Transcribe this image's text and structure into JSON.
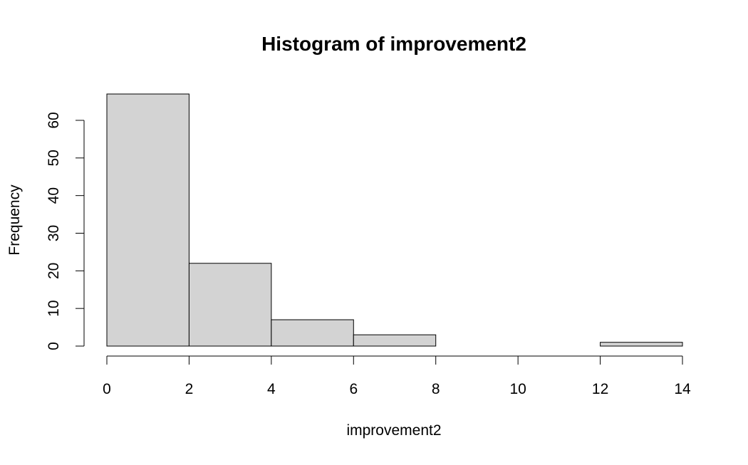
{
  "chart_data": {
    "type": "bar",
    "title": "Histogram of improvement2",
    "xlabel": "improvement2",
    "ylabel": "Frequency",
    "bins": [
      {
        "from": 0,
        "to": 2,
        "count": 67
      },
      {
        "from": 2,
        "to": 4,
        "count": 22
      },
      {
        "from": 4,
        "to": 6,
        "count": 7
      },
      {
        "from": 6,
        "to": 8,
        "count": 3
      },
      {
        "from": 8,
        "to": 10,
        "count": 0
      },
      {
        "from": 10,
        "to": 12,
        "count": 0
      },
      {
        "from": 12,
        "to": 14,
        "count": 1
      }
    ],
    "x_ticks": [
      0,
      2,
      4,
      6,
      8,
      10,
      12,
      14
    ],
    "y_ticks": [
      0,
      10,
      20,
      30,
      40,
      50,
      60
    ],
    "xlim": [
      0,
      14
    ],
    "ylim": [
      0,
      67
    ],
    "grid": false,
    "bar_fill": "#d3d3d3",
    "bar_stroke": "#000000"
  }
}
